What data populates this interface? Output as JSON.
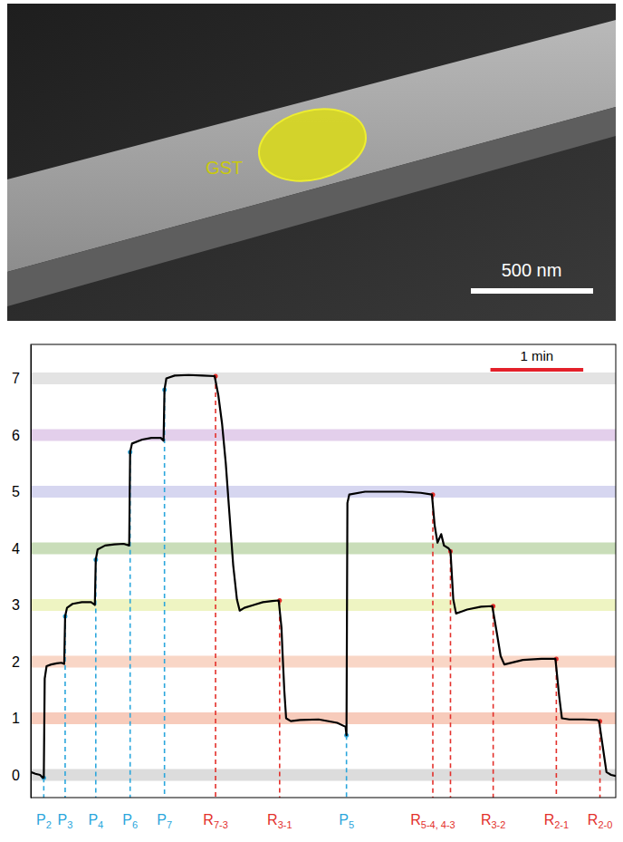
{
  "image": {
    "label": "GST",
    "scale_bar": "500 nm"
  },
  "chart_data": {
    "type": "line",
    "x": [
      0.0,
      0.05,
      0.1,
      0.13,
      0.14,
      0.15,
      0.17,
      0.22,
      0.28,
      0.33,
      0.36,
      0.37,
      0.39,
      0.45,
      0.55,
      0.65,
      0.69,
      0.7,
      0.72,
      0.8,
      0.9,
      1.0,
      1.06,
      1.07,
      1.09,
      1.2,
      1.3,
      1.4,
      1.43,
      1.44,
      1.46,
      1.55,
      1.7,
      1.85,
      1.98,
      2.02,
      2.06,
      2.1,
      2.14,
      2.18,
      2.22,
      2.25,
      2.3,
      2.4,
      2.5,
      2.6,
      2.67,
      2.7,
      2.71,
      2.73,
      2.75,
      2.8,
      2.9,
      3.1,
      3.3,
      3.39,
      3.4,
      3.41,
      3.43,
      3.6,
      3.8,
      4.0,
      4.2,
      4.32,
      4.35,
      4.38,
      4.42,
      4.45,
      4.5,
      4.52,
      4.55,
      4.58,
      4.7,
      4.85,
      4.97,
      5.02,
      5.06,
      5.1,
      5.3,
      5.5,
      5.65,
      5.69,
      5.72,
      5.8,
      5.95,
      6.1,
      6.12,
      6.16,
      6.2,
      6.25,
      6.3
    ],
    "values": [
      0.05,
      0.02,
      0.0,
      -0.05,
      -0.05,
      1.7,
      1.92,
      1.95,
      1.97,
      1.98,
      1.96,
      2.8,
      2.95,
      3.02,
      3.05,
      3.05,
      3.0,
      3.8,
      3.98,
      4.05,
      4.07,
      4.08,
      4.05,
      5.7,
      5.85,
      5.92,
      5.95,
      5.95,
      5.9,
      6.8,
      7.0,
      7.05,
      7.06,
      7.05,
      7.04,
      6.7,
      6.2,
      5.5,
      4.6,
      3.7,
      3.1,
      2.9,
      2.95,
      3.0,
      3.05,
      3.07,
      3.08,
      2.6,
      2.2,
      1.5,
      1.0,
      0.95,
      0.97,
      0.98,
      0.92,
      0.85,
      0.7,
      4.8,
      4.95,
      5.0,
      5.0,
      5.0,
      4.98,
      4.95,
      4.4,
      4.1,
      4.25,
      4.05,
      4.0,
      3.95,
      3.1,
      2.85,
      2.92,
      2.97,
      2.98,
      2.5,
      2.1,
      1.95,
      2.03,
      2.05,
      2.05,
      1.4,
      1.0,
      0.98,
      0.98,
      0.97,
      0.95,
      0.5,
      0.05,
      0.0,
      -0.02
    ],
    "color": "#000000",
    "xlim": [
      0,
      6.3
    ],
    "ylim": [
      -0.4,
      7.6
    ],
    "yticks": [
      0,
      1,
      2,
      3,
      4,
      5,
      6,
      7
    ],
    "tick_labels": "y",
    "bands": {
      "values": [
        0,
        1,
        2,
        3,
        4,
        5,
        6,
        7
      ],
      "colors": [
        "#dcdcdc",
        "#f7cbbb",
        "#f9d6c6",
        "#eef4c2",
        "#c9ddb9",
        "#d6d6f0",
        "#e3cfeb",
        "#e3e3e3"
      ]
    },
    "events": {
      "x": [
        0.14,
        0.37,
        0.7,
        1.07,
        1.44,
        1.99,
        2.68,
        3.4,
        4.33,
        4.52,
        4.98,
        5.66,
        6.13
      ],
      "labels": [
        "P2",
        "P3",
        "P4",
        "P6",
        "P7",
        "R7-3",
        "R3-1",
        "P5",
        "R5-4, 4-3",
        null,
        "R3-2",
        "R2-1",
        "R2-0"
      ],
      "colors": [
        "#2aa6dc",
        "#2aa6dc",
        "#2aa6dc",
        "#2aa6dc",
        "#2aa6dc",
        "#e3302b",
        "#e3302b",
        "#2aa6dc",
        "#e3302b",
        "#e3302b",
        "#e3302b",
        "#e3302b",
        "#e3302b"
      ]
    },
    "scale_bar": {
      "label": "1 min",
      "length": 1
    }
  }
}
